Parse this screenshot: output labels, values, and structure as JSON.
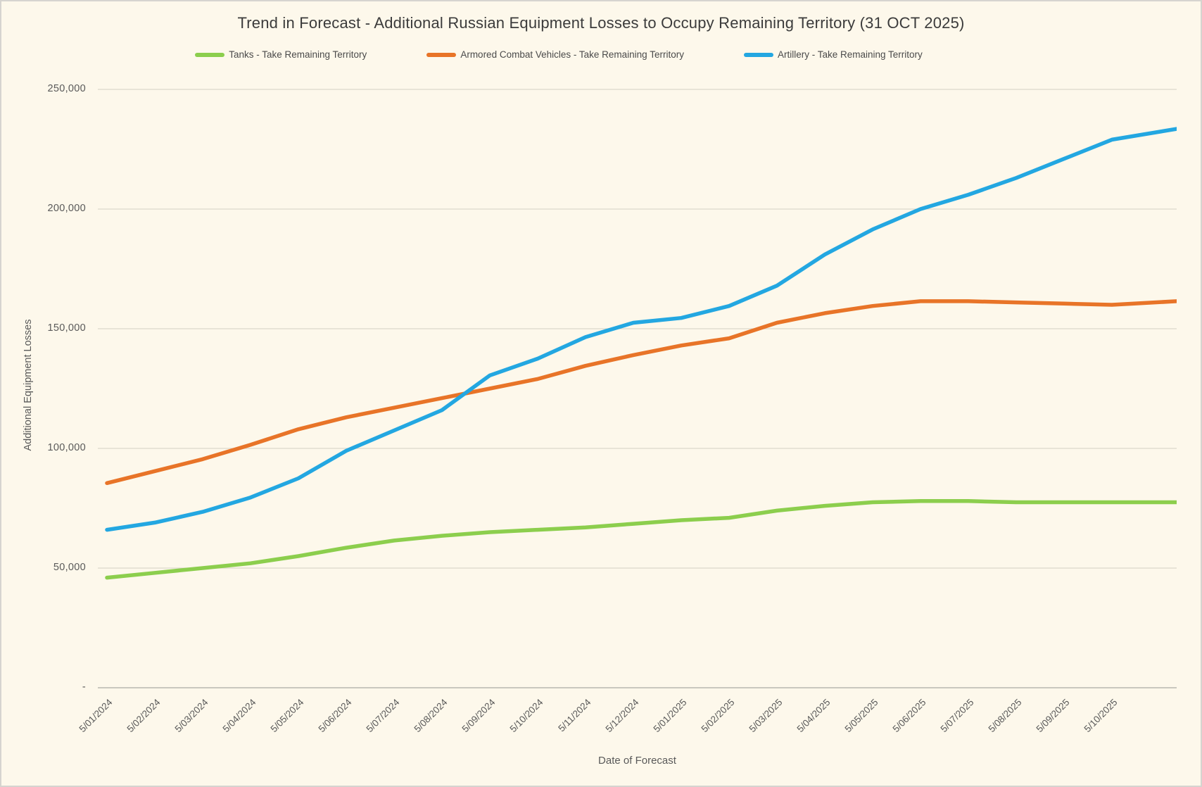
{
  "page": {
    "background_color": "#FDF8EB",
    "border_color": "#D6D4CF",
    "text_color_title": "#3B3B3B",
    "text_color_axis": "#595959",
    "gridline_color": "#DBD7CB",
    "axisline_color": "#C9C7BE"
  },
  "chart_data": {
    "type": "line",
    "title": "Trend in Forecast - Additional Russian Equipment Losses to Occupy Remaining Territory (31 OCT 2025)",
    "xlabel": "Date of Forecast",
    "ylabel": "Additional Equipment Losses",
    "ylim": [
      0,
      250000
    ],
    "grid": "horizontal",
    "legend_position": "top",
    "y_tick_values": [
      0,
      50000,
      100000,
      150000,
      200000,
      250000
    ],
    "y_tick_labels": [
      "-",
      "50,000",
      "100,000",
      "150,000",
      "200,000",
      "250,000"
    ],
    "x_tick_labels": [
      "5/01/2024",
      "5/02/2024",
      "5/03/2024",
      "5/04/2024",
      "5/05/2024",
      "5/06/2024",
      "5/07/2024",
      "5/08/2024",
      "5/09/2024",
      "5/10/2024",
      "5/11/2024",
      "5/12/2024",
      "5/01/2025",
      "5/02/2025",
      "5/03/2025",
      "5/04/2025",
      "5/05/2025",
      "5/06/2025",
      "5/07/2025",
      "5/08/2025",
      "5/09/2025",
      "5/10/2025"
    ],
    "x_note": "series contain one extra point past the last tick, ending at the 31 OCT 2025 forecast date",
    "series": [
      {
        "id": "tanks",
        "name": "Tanks - Take Remaining Territory",
        "color": "#8CCE4D",
        "values": [
          46000,
          48000,
          50000,
          52000,
          55000,
          58500,
          61500,
          63500,
          65000,
          66000,
          67000,
          68500,
          70000,
          71000,
          74000,
          76000,
          77500,
          78000,
          78000,
          77500,
          77500,
          77500,
          77500
        ]
      },
      {
        "id": "armored-combat-vehicles",
        "name": "Armored Combat Vehicles - Take Remaining Territory",
        "color": "#E87428",
        "values": [
          85500,
          90500,
          95500,
          101500,
          108000,
          113000,
          117000,
          121000,
          125000,
          129000,
          134500,
          139000,
          143000,
          146000,
          152500,
          156500,
          159500,
          161500,
          161500,
          161000,
          160500,
          160000,
          161500
        ]
      },
      {
        "id": "artillery",
        "name": "Artillery - Take Remaining Territory",
        "color": "#23A7E1",
        "values": [
          66000,
          69000,
          73500,
          79500,
          87500,
          99000,
          107500,
          116000,
          130500,
          137500,
          146500,
          152500,
          154500,
          159500,
          168000,
          181000,
          191500,
          200000,
          206000,
          213000,
          221000,
          229000,
          233500
        ]
      }
    ]
  }
}
